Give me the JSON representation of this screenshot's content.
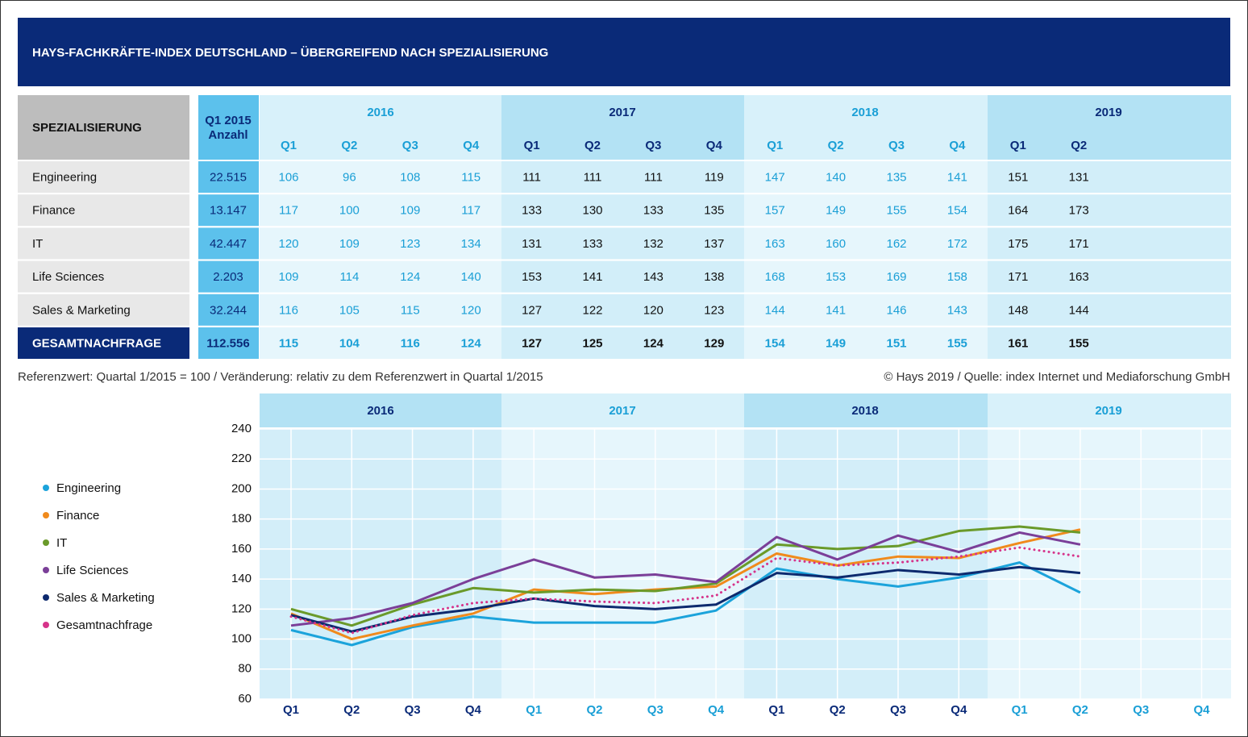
{
  "title": "HAYS-FACHKRÄFTE-INDEX DEUTSCHLAND – ÜBERGREIFEND NACH SPEZIALISIERUNG",
  "table": {
    "header": "SPEZIALISIERUNG",
    "base_header": [
      "Q1 2015",
      "Anzahl"
    ],
    "rows": [
      {
        "label": "Engineering",
        "base": "22.515"
      },
      {
        "label": "Finance",
        "base": "13.147"
      },
      {
        "label": "IT",
        "base": "42.447"
      },
      {
        "label": "Life Sciences",
        "base": "2.203"
      },
      {
        "label": "Sales & Marketing",
        "base": "32.244"
      },
      {
        "label": "GESAMTNACHFRAGE",
        "base": "112.556"
      }
    ]
  },
  "footnote_left": "Referenzwert: Quartal 1/2015 = 100 / Veränderung: relativ zu dem Referenzwert in Quartal 1/2015",
  "footnote_right": "© Hays 2019 / Quelle: index Internet und Mediaforschung GmbH",
  "chart_data": {
    "type": "line",
    "years": [
      "2016",
      "2017",
      "2018",
      "2019"
    ],
    "categories": [
      "Q1",
      "Q2",
      "Q3",
      "Q4",
      "Q1",
      "Q2",
      "Q3",
      "Q4",
      "Q1",
      "Q2",
      "Q3",
      "Q4",
      "Q1",
      "Q2",
      "Q3",
      "Q4"
    ],
    "ylim": [
      60,
      240
    ],
    "yticks": [
      60,
      80,
      100,
      120,
      140,
      160,
      180,
      200,
      220,
      240
    ],
    "grid": true,
    "series": [
      {
        "name": "Engineering",
        "color": "#1ba3db",
        "values": [
          106,
          96,
          108,
          115,
          111,
          111,
          111,
          119,
          147,
          140,
          135,
          141,
          151,
          131,
          null,
          null
        ]
      },
      {
        "name": "Finance",
        "color": "#f08a1c",
        "values": [
          117,
          100,
          109,
          117,
          133,
          130,
          133,
          135,
          157,
          149,
          155,
          154,
          164,
          173,
          null,
          null
        ]
      },
      {
        "name": "IT",
        "color": "#6a9a2a",
        "values": [
          120,
          109,
          123,
          134,
          131,
          133,
          132,
          137,
          163,
          160,
          162,
          172,
          175,
          171,
          null,
          null
        ]
      },
      {
        "name": "Life Sciences",
        "color": "#7b3f98",
        "values": [
          109,
          114,
          124,
          140,
          153,
          141,
          143,
          138,
          168,
          153,
          169,
          158,
          171,
          163,
          null,
          null
        ]
      },
      {
        "name": "Sales & Marketing",
        "color": "#0d2a6e",
        "values": [
          116,
          105,
          115,
          120,
          127,
          122,
          120,
          123,
          144,
          141,
          146,
          143,
          148,
          144,
          null,
          null
        ]
      },
      {
        "name": "Gesamtnachfrage",
        "color": "#d6338a",
        "dotted": true,
        "values": [
          115,
          104,
          116,
          124,
          127,
          125,
          124,
          129,
          154,
          149,
          151,
          155,
          161,
          155,
          null,
          null
        ]
      }
    ]
  }
}
